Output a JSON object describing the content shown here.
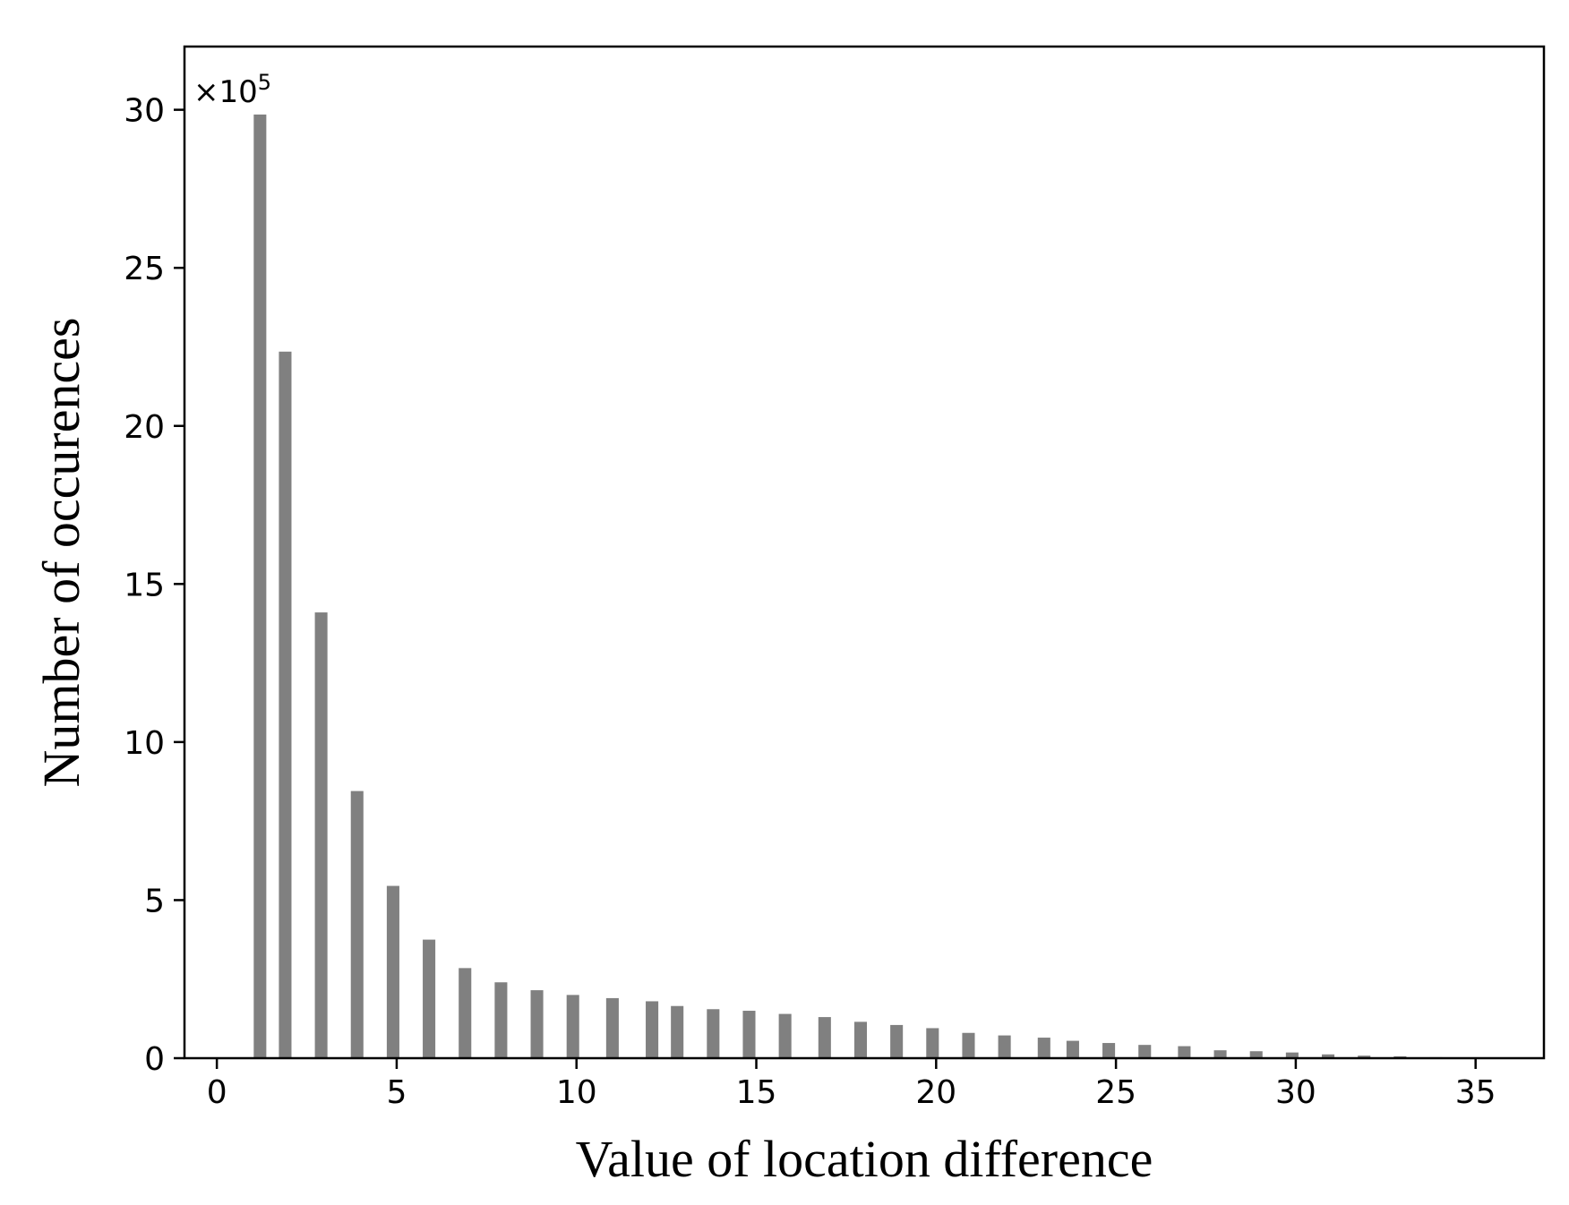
{
  "chart_data": {
    "type": "bar",
    "title": "",
    "xlabel": "Value of location difference",
    "ylabel": "Number of occurences",
    "y_multiplier": "×10",
    "y_multiplier_exponent": "5",
    "xlim": [
      -0.9,
      36.9
    ],
    "ylim": [
      0,
      32
    ],
    "xticks": [
      0,
      5,
      10,
      15,
      20,
      25,
      30,
      35
    ],
    "yticks": [
      0,
      5,
      10,
      15,
      20,
      25,
      30
    ],
    "bar_color": "#808080",
    "bar_width": 0.35,
    "grid": false,
    "x": [
      1.2,
      1.9,
      2.9,
      3.9,
      4.9,
      5.9,
      6.9,
      7.9,
      8.9,
      9.9,
      11.0,
      12.1,
      12.8,
      13.8,
      14.8,
      15.8,
      16.9,
      17.9,
      18.9,
      19.9,
      20.9,
      21.9,
      23.0,
      23.8,
      24.8,
      25.8,
      26.9,
      27.9,
      28.9,
      29.9,
      30.9,
      31.9,
      32.9,
      33.9,
      34.9
    ],
    "values": [
      29.85,
      22.35,
      14.1,
      8.45,
      5.45,
      3.75,
      2.85,
      2.4,
      2.15,
      2.0,
      1.9,
      1.8,
      1.65,
      1.55,
      1.5,
      1.4,
      1.3,
      1.15,
      1.05,
      0.95,
      0.8,
      0.72,
      0.65,
      0.55,
      0.48,
      0.42,
      0.38,
      0.25,
      0.22,
      0.18,
      0.12,
      0.08,
      0.06,
      0.03,
      0.02
    ]
  }
}
